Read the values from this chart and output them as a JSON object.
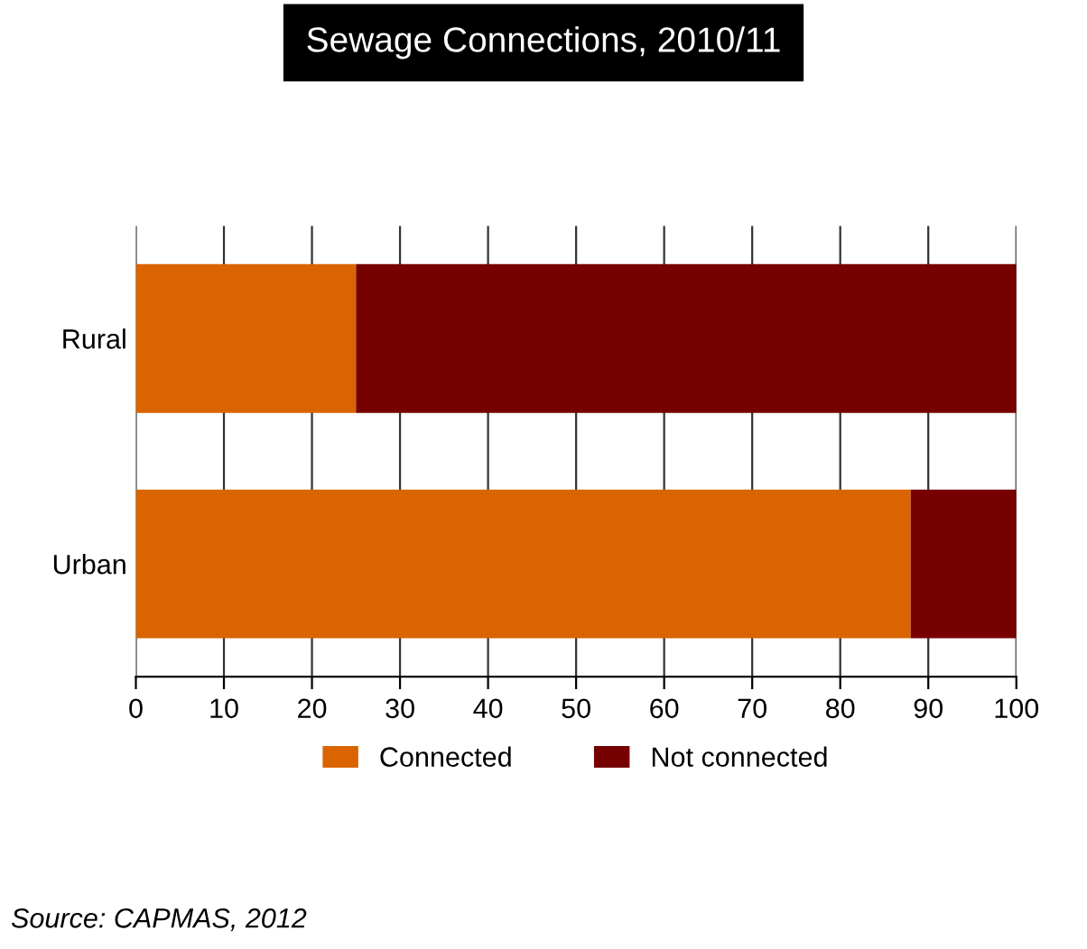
{
  "chart_data": {
    "type": "bar",
    "orientation": "horizontal",
    "stacked": true,
    "title": "Sewage Connections, 2010/11",
    "categories": [
      "Rural",
      "Urban"
    ],
    "series": [
      {
        "name": "Connected",
        "color": "#d96400",
        "values": [
          25,
          88
        ]
      },
      {
        "name": "Not connected",
        "color": "#770000",
        "values": [
          75,
          12
        ]
      }
    ],
    "xlim": [
      0,
      100
    ],
    "xticks": [
      0,
      10,
      20,
      30,
      40,
      50,
      60,
      70,
      80,
      90,
      100
    ],
    "grid": "x",
    "legend": "bottom",
    "annotations": [
      "Source: CAPMAS, 2012"
    ]
  }
}
